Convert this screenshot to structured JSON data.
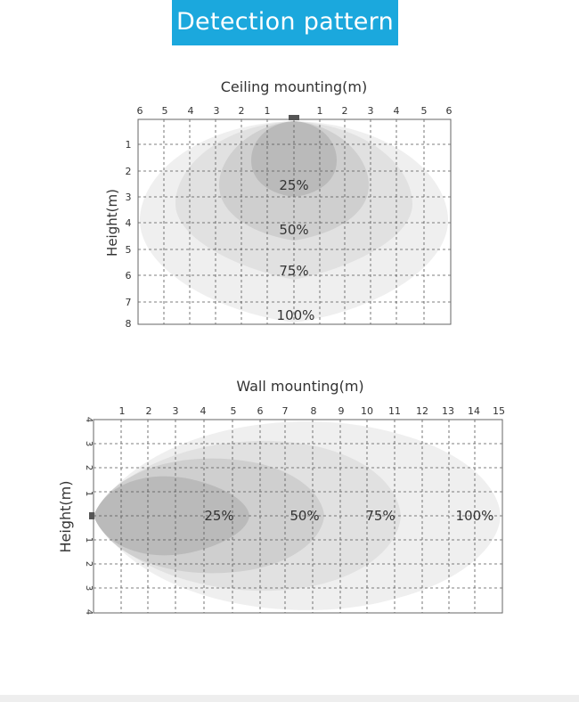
{
  "header": {
    "title": "Detection pattern"
  },
  "ceiling": {
    "title": "Ceiling mounting(m)",
    "ylabel": "Height(m)",
    "x_ticks_left": [
      "6",
      "5",
      "4",
      "3",
      "2",
      "1"
    ],
    "x_ticks_right": [
      "1",
      "2",
      "3",
      "4",
      "5",
      "6"
    ],
    "y_ticks": [
      "1",
      "2",
      "3",
      "4",
      "5",
      "6",
      "7",
      "8"
    ],
    "zones": [
      "25%",
      "50%",
      "75%",
      "100%"
    ]
  },
  "wall": {
    "title": "Wall mounting(m)",
    "ylabel": "Height(m)",
    "x_ticks": [
      "1",
      "2",
      "3",
      "4",
      "5",
      "6",
      "7",
      "8",
      "9",
      "10",
      "11",
      "12",
      "13",
      "14",
      "15"
    ],
    "y_ticks_top": [
      "4",
      "3",
      "2",
      "1"
    ],
    "y_ticks_bottom": [
      "1",
      "2",
      "3",
      "4"
    ],
    "zones": [
      "25%",
      "50%",
      "75%",
      "100%"
    ]
  },
  "colors": {
    "accent": "#1ba8dd",
    "zone_100": "#efefef",
    "zone_75": "#e1e1e1",
    "zone_50": "#cecece",
    "zone_25": "#b9b9b9",
    "sensor": "#555555"
  }
}
